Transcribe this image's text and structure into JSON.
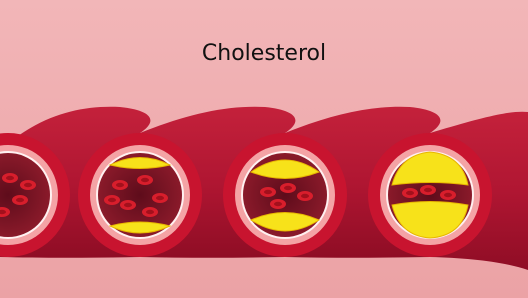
{
  "title": "Cholesterol"
}
